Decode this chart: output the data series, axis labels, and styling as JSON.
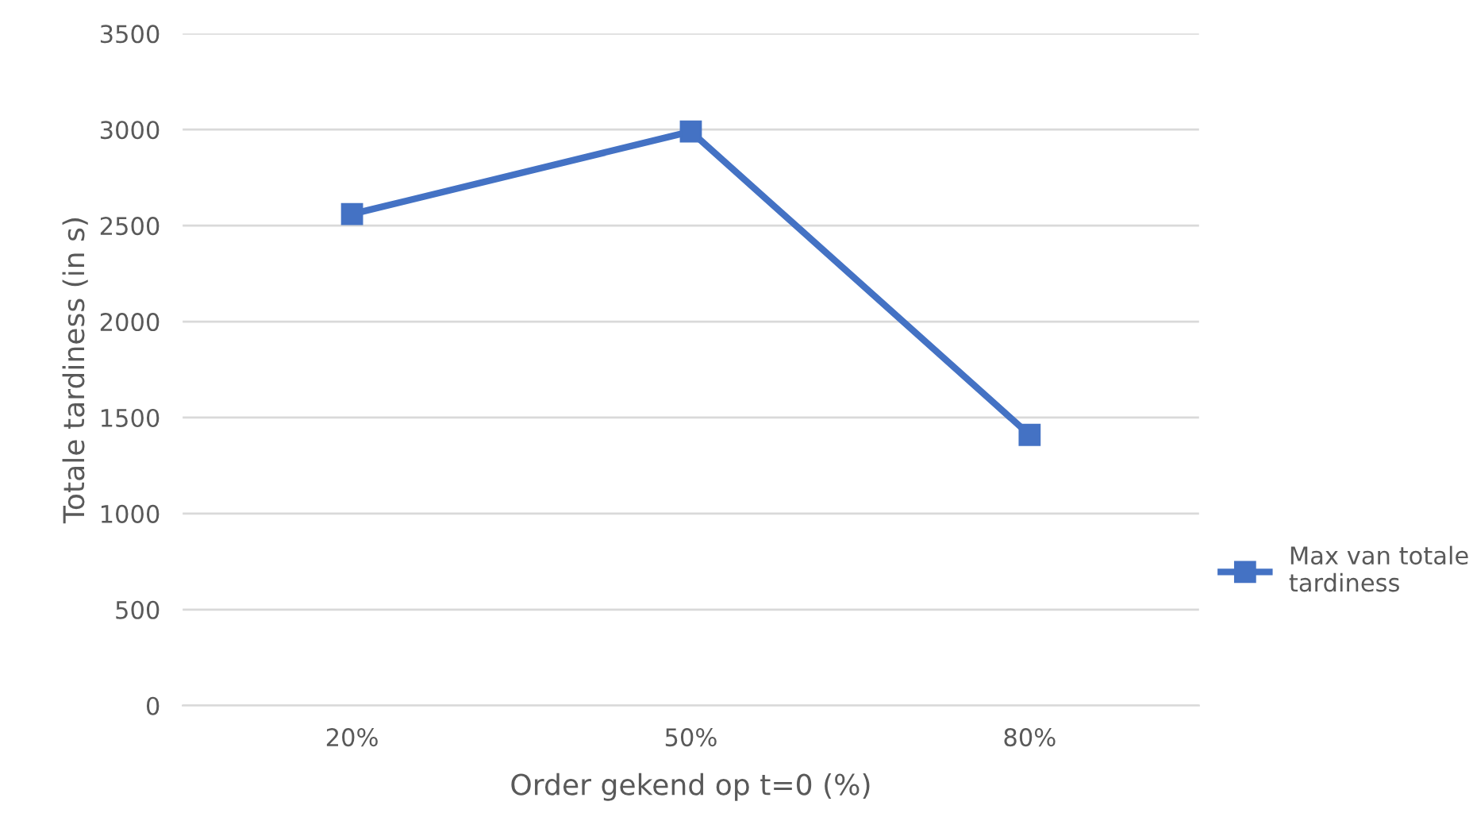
{
  "chart_data": {
    "type": "line",
    "xlabel": "Order gekend op t=0 (%)",
    "ylabel": "Totale tardiness (in s)",
    "categories": [
      "20%",
      "50%",
      "80%"
    ],
    "series": [
      {
        "name": "Max van totale tardiness",
        "color": "#4472c4",
        "values": [
          2560,
          2990,
          1410
        ]
      }
    ],
    "ylim": [
      0,
      3500
    ],
    "yticks": [
      0,
      500,
      1000,
      1500,
      2000,
      2500,
      3000,
      3500
    ],
    "grid": "y",
    "legend": "right",
    "marker": "square",
    "line_style": "solid"
  }
}
